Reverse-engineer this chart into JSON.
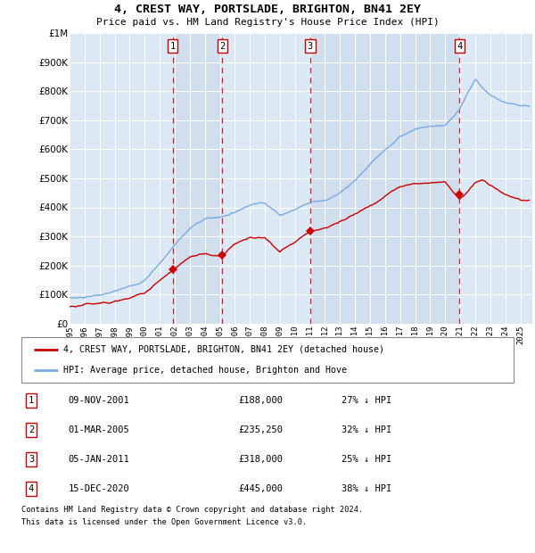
{
  "title": "4, CREST WAY, PORTSLADE, BRIGHTON, BN41 2EY",
  "subtitle": "Price paid vs. HM Land Registry's House Price Index (HPI)",
  "footer1": "Contains HM Land Registry data © Crown copyright and database right 2024.",
  "footer2": "This data is licensed under the Open Government Licence v3.0.",
  "legend_red": "4, CREST WAY, PORTSLADE, BRIGHTON, BN41 2EY (detached house)",
  "legend_blue": "HPI: Average price, detached house, Brighton and Hove",
  "transactions": [
    {
      "num": 1,
      "date": "09-NOV-2001",
      "price": 188000,
      "pct": "27% ↓ HPI",
      "year": 2001.86
    },
    {
      "num": 2,
      "date": "01-MAR-2005",
      "price": 235250,
      "pct": "32% ↓ HPI",
      "year": 2005.17
    },
    {
      "num": 3,
      "date": "05-JAN-2011",
      "price": 318000,
      "pct": "25% ↓ HPI",
      "year": 2011.01
    },
    {
      "num": 4,
      "date": "15-DEC-2020",
      "price": 445000,
      "pct": "38% ↓ HPI",
      "year": 2020.96
    }
  ],
  "plot_bg": "#dce9f5",
  "grid_color": "#ffffff",
  "red_color": "#cc0000",
  "blue_color": "#7aabe0",
  "ylim": [
    0,
    1000000
  ],
  "xlim_start": 1995.0,
  "xlim_end": 2025.8
}
